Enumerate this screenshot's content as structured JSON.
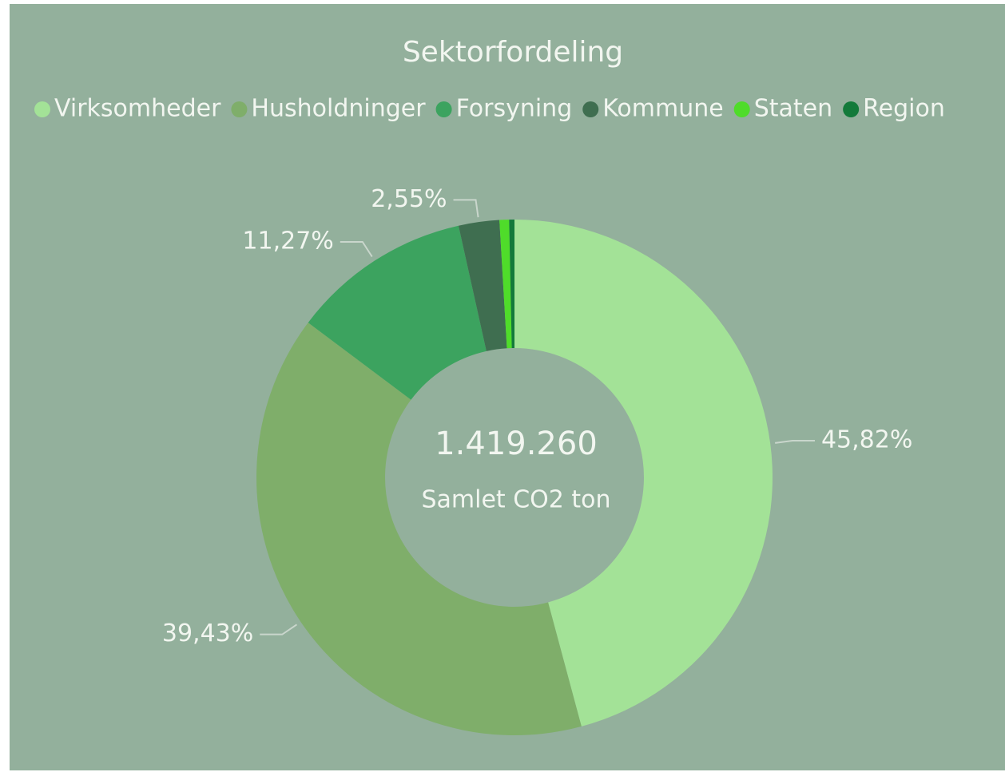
{
  "chart_data": {
    "type": "donut",
    "title": "Sektorfordeling",
    "categories": [
      "Virksomheder",
      "Husholdninger",
      "Forsyning",
      "Kommune",
      "Staten",
      "Region"
    ],
    "values": [
      45.82,
      39.43,
      11.27,
      2.55,
      0.6,
      0.33
    ],
    "value_labels": [
      "45,82%",
      "39,43%",
      "11,27%",
      "2,55%",
      null,
      null
    ],
    "colors": [
      "#a3e297",
      "#7fae6a",
      "#3ca35f",
      "#3f6e50",
      "#4fdc2a",
      "#137a3a"
    ],
    "center_value": "1.419.260",
    "center_label": "Samlet CO2 ton",
    "legend": "top"
  }
}
